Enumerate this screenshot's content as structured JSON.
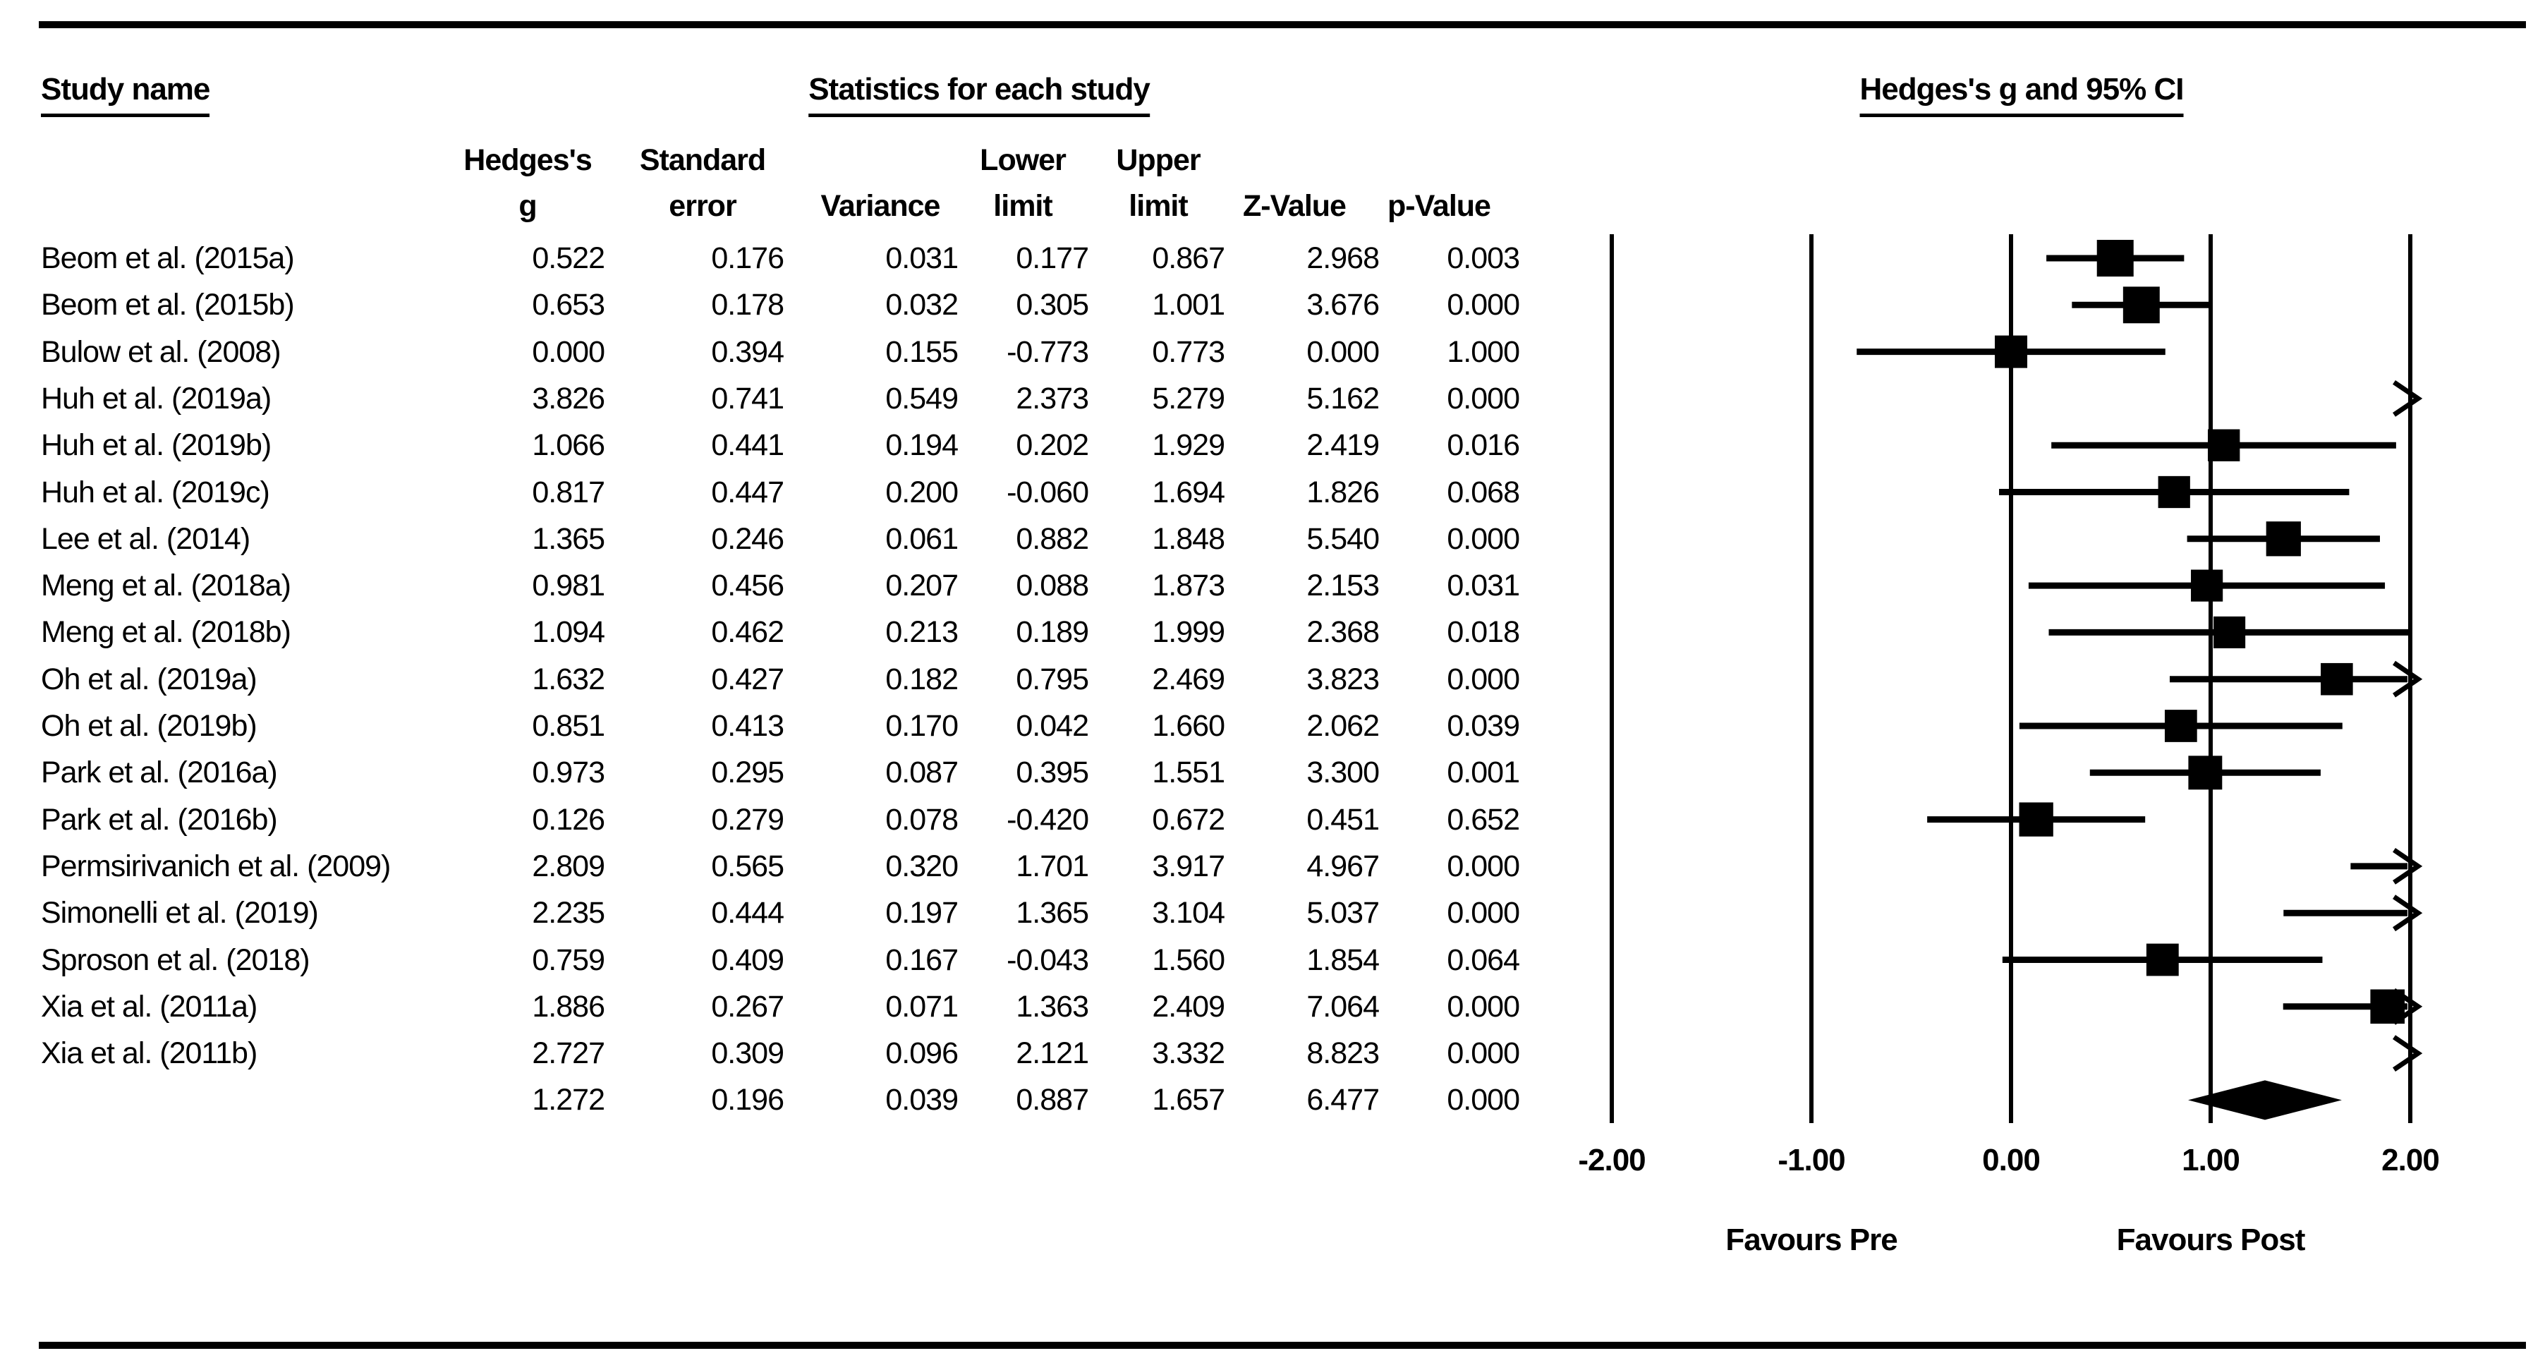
{
  "titles": {
    "study_name": "Study name",
    "statistics": "Statistics for each study",
    "plot": "Hedges's g and 95% CI"
  },
  "table": {
    "headers": [
      {
        "line1": "Hedges's",
        "line2": "g"
      },
      {
        "line1": "Standard",
        "line2": "error"
      },
      {
        "line1": "",
        "line2": "Variance"
      },
      {
        "line1": "Lower",
        "line2": "limit"
      },
      {
        "line1": "Upper",
        "line2": "limit"
      },
      {
        "line1": "",
        "line2": "Z-Value"
      },
      {
        "line1": "",
        "line2": "p-Value"
      }
    ]
  },
  "chart_data": {
    "type": "forest",
    "effect_measure": "Hedges's g",
    "axis": {
      "min": -2,
      "max": 2,
      "tick_values": [
        -2,
        -1,
        0,
        1,
        2
      ],
      "tick_labels": [
        "-2.00",
        "-1.00",
        "0.00",
        "1.00",
        "2.00"
      ]
    },
    "footer": {
      "left": "Favours Pre",
      "right": "Favours Post"
    },
    "studies": [
      {
        "name": "Beom et al. (2015a)",
        "g": "0.522",
        "se": "0.176",
        "variance": "0.031",
        "lower": "0.177",
        "upper": "0.867",
        "z": "2.968",
        "p": "0.003"
      },
      {
        "name": "Beom et al. (2015b)",
        "g": "0.653",
        "se": "0.178",
        "variance": "0.032",
        "lower": "0.305",
        "upper": "1.001",
        "z": "3.676",
        "p": "0.000"
      },
      {
        "name": "Bulow et al. (2008)",
        "g": "0.000",
        "se": "0.394",
        "variance": "0.155",
        "lower": "-0.773",
        "upper": "0.773",
        "z": "0.000",
        "p": "1.000"
      },
      {
        "name": "Huh et al. (2019a)",
        "g": "3.826",
        "se": "0.741",
        "variance": "0.549",
        "lower": "2.373",
        "upper": "5.279",
        "z": "5.162",
        "p": "0.000"
      },
      {
        "name": "Huh et al. (2019b)",
        "g": "1.066",
        "se": "0.441",
        "variance": "0.194",
        "lower": "0.202",
        "upper": "1.929",
        "z": "2.419",
        "p": "0.016"
      },
      {
        "name": "Huh et al. (2019c)",
        "g": "0.817",
        "se": "0.447",
        "variance": "0.200",
        "lower": "-0.060",
        "upper": "1.694",
        "z": "1.826",
        "p": "0.068"
      },
      {
        "name": "Lee et al. (2014)",
        "g": "1.365",
        "se": "0.246",
        "variance": "0.061",
        "lower": "0.882",
        "upper": "1.848",
        "z": "5.540",
        "p": "0.000"
      },
      {
        "name": "Meng et al. (2018a)",
        "g": "0.981",
        "se": "0.456",
        "variance": "0.207",
        "lower": "0.088",
        "upper": "1.873",
        "z": "2.153",
        "p": "0.031"
      },
      {
        "name": "Meng et al. (2018b)",
        "g": "1.094",
        "se": "0.462",
        "variance": "0.213",
        "lower": "0.189",
        "upper": "1.999",
        "z": "2.368",
        "p": "0.018"
      },
      {
        "name": "Oh et al. (2019a)",
        "g": "1.632",
        "se": "0.427",
        "variance": "0.182",
        "lower": "0.795",
        "upper": "2.469",
        "z": "3.823",
        "p": "0.000"
      },
      {
        "name": "Oh et al. (2019b)",
        "g": "0.851",
        "se": "0.413",
        "variance": "0.170",
        "lower": "0.042",
        "upper": "1.660",
        "z": "2.062",
        "p": "0.039"
      },
      {
        "name": "Park et al. (2016a)",
        "g": "0.973",
        "se": "0.295",
        "variance": "0.087",
        "lower": "0.395",
        "upper": "1.551",
        "z": "3.300",
        "p": "0.001"
      },
      {
        "name": "Park et al. (2016b)",
        "g": "0.126",
        "se": "0.279",
        "variance": "0.078",
        "lower": "-0.420",
        "upper": "0.672",
        "z": "0.451",
        "p": "0.652"
      },
      {
        "name": "Permsirivanich et al. (2009)",
        "g": "2.809",
        "se": "0.565",
        "variance": "0.320",
        "lower": "1.701",
        "upper": "3.917",
        "z": "4.967",
        "p": "0.000"
      },
      {
        "name": "Simonelli et al. (2019)",
        "g": "2.235",
        "se": "0.444",
        "variance": "0.197",
        "lower": "1.365",
        "upper": "3.104",
        "z": "5.037",
        "p": "0.000"
      },
      {
        "name": "Sproson et al. (2018)",
        "g": "0.759",
        "se": "0.409",
        "variance": "0.167",
        "lower": "-0.043",
        "upper": "1.560",
        "z": "1.854",
        "p": "0.064"
      },
      {
        "name": "Xia et al. (2011a)",
        "g": "1.886",
        "se": "0.267",
        "variance": "0.071",
        "lower": "1.363",
        "upper": "2.409",
        "z": "7.064",
        "p": "0.000"
      },
      {
        "name": "Xia et al. (2011b)",
        "g": "2.727",
        "se": "0.309",
        "variance": "0.096",
        "lower": "2.121",
        "upper": "3.332",
        "z": "8.823",
        "p": "0.000"
      }
    ],
    "overall": {
      "name": "",
      "g": "1.272",
      "se": "0.196",
      "variance": "0.039",
      "lower": "0.887",
      "upper": "1.657",
      "z": "6.477",
      "p": "0.000"
    }
  },
  "colors": {
    "ink": "#000000",
    "background": "#ffffff"
  }
}
